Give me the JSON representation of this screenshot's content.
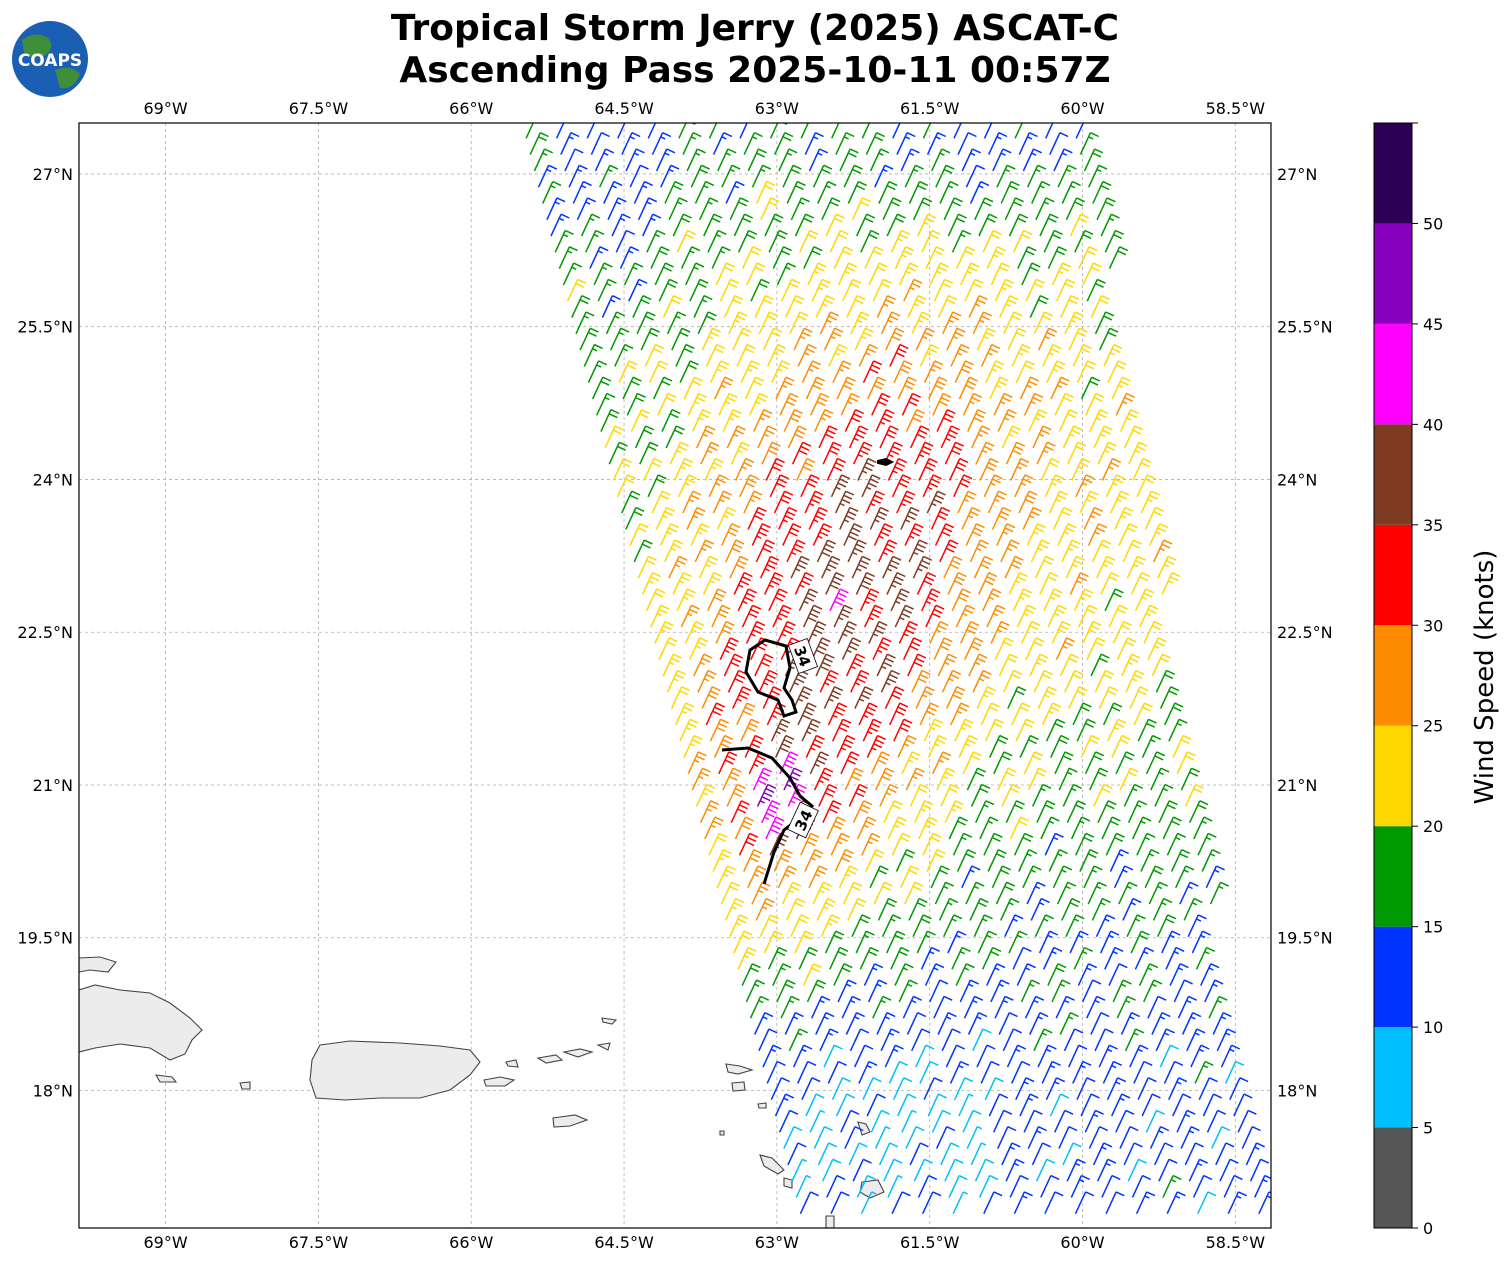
{
  "title": {
    "line1": "Tropical Storm Jerry (2025) ASCAT-C",
    "line2": "Ascending Pass 2025-10-11 00:57Z"
  },
  "logo": {
    "text": "COAPS",
    "icon": "globe-icon"
  },
  "map": {
    "lon_range": [
      -69.85,
      -58.15
    ],
    "lat_range": [
      16.65,
      27.5
    ],
    "lon_ticks": [
      {
        "value": -69.0,
        "label": "69°W"
      },
      {
        "value": -67.5,
        "label": "67.5°W"
      },
      {
        "value": -66.0,
        "label": "66°W"
      },
      {
        "value": -64.5,
        "label": "64.5°W"
      },
      {
        "value": -63.0,
        "label": "63°W"
      },
      {
        "value": -61.5,
        "label": "61.5°W"
      },
      {
        "value": -60.0,
        "label": "60°W"
      },
      {
        "value": -58.5,
        "label": "58.5°W"
      }
    ],
    "lat_ticks": [
      {
        "value": 27.0,
        "label": "27°N"
      },
      {
        "value": 25.5,
        "label": "25.5°N"
      },
      {
        "value": 24.0,
        "label": "24°N"
      },
      {
        "value": 22.5,
        "label": "22.5°N"
      },
      {
        "value": 21.0,
        "label": "21°N"
      },
      {
        "value": 19.5,
        "label": "19.5°N"
      },
      {
        "value": 18.0,
        "label": "18°N"
      }
    ],
    "gridlines": true,
    "contour_labels": [
      "34",
      "34"
    ],
    "contour_value": 34
  },
  "colorbar": {
    "label": "Wind Speed (knots)",
    "ticks": [
      "0",
      "5",
      "10",
      "15",
      "20",
      "25",
      "30",
      "35",
      "40",
      "45",
      "50"
    ],
    "colors": [
      "#555555",
      "#00bfff",
      "#0033ff",
      "#009900",
      "#ffd700",
      "#ff8c00",
      "#ff0000",
      "#7f3a22",
      "#ff00ff",
      "#8800bb",
      "#2d0055"
    ],
    "range": [
      0,
      55
    ]
  }
}
